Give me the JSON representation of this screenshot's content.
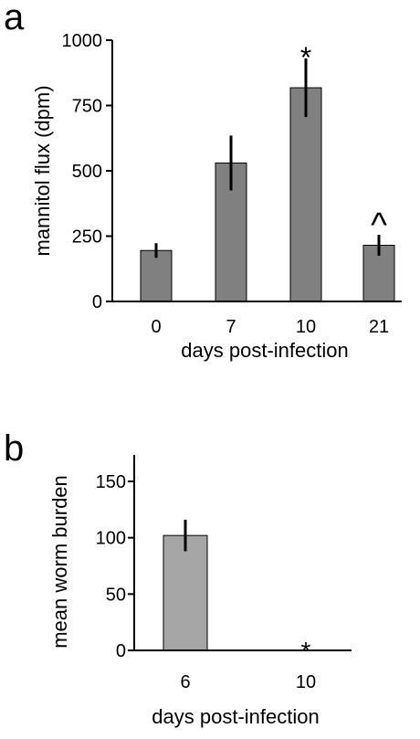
{
  "chart_data": [
    {
      "panel_label": "a",
      "type": "bar",
      "categories": [
        "0",
        "7",
        "10",
        "21"
      ],
      "values": [
        195,
        530,
        818,
        215
      ],
      "error": [
        28,
        105,
        112,
        40
      ],
      "annotations": [
        "",
        "",
        "*",
        "^"
      ],
      "xlabel": "days post-infection",
      "ylabel": "mannitol flux (dpm)",
      "ylim": [
        0,
        1000
      ],
      "yticks": [
        "0",
        "250",
        "500",
        "750",
        "1000"
      ],
      "grid": false,
      "bar_color": "#808080"
    },
    {
      "panel_label": "b",
      "type": "bar",
      "categories": [
        "6",
        "10"
      ],
      "values": [
        102,
        0
      ],
      "error": [
        14,
        0
      ],
      "annotations": [
        "",
        "*"
      ],
      "xlabel": "days post-infection",
      "ylabel": "mean worm burden",
      "ylim": [
        0,
        150
      ],
      "yticks": [
        "0",
        "50",
        "100",
        "150"
      ],
      "grid": false,
      "bar_color": "#a6a6a6"
    }
  ]
}
